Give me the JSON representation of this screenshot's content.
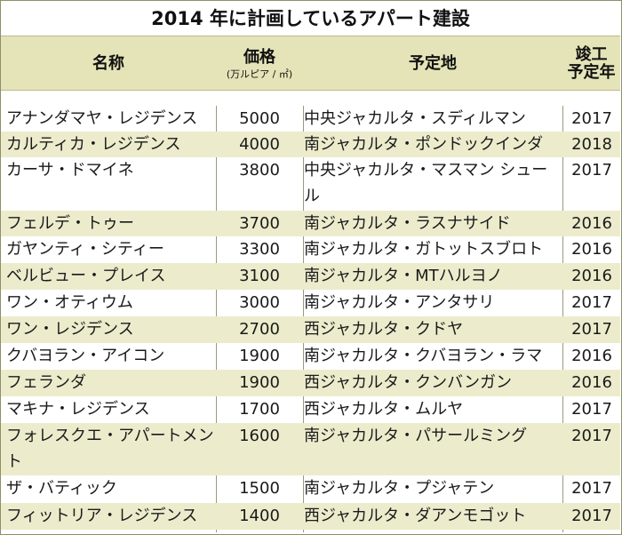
{
  "title": "2014 年に計画しているアパート建設",
  "header": {
    "name": "名称",
    "price": "価格",
    "price_unit": "(万ルピア / ㎡)",
    "location": "予定地",
    "completion_line1": "竣工",
    "completion_line2": "予定年"
  },
  "rows": [
    {
      "name": "アナンダマヤ・レジデンス",
      "price": "5000",
      "location": "中央ジャカルタ・スディルマン",
      "year": "2017"
    },
    {
      "name": "カルティカ・レジデンス",
      "price": "4000",
      "location": "南ジャカルタ・ポンドックインダ",
      "year": "2018"
    },
    {
      "name": "カーサ・ドマイネ",
      "price": "3800",
      "location": "中央ジャカルタ・マスマン シュール",
      "year": "2017"
    },
    {
      "name": "フェルデ・トゥー",
      "price": "3700",
      "location": "南ジャカルタ・ラスナサイド",
      "year": "2016"
    },
    {
      "name": "ガヤンティ・シティー",
      "price": "3300",
      "location": "南ジャカルタ・ガトットスブロト",
      "year": "2016"
    },
    {
      "name": "ベルビュー・プレイス",
      "price": "3100",
      "location": "南ジャカルタ・MTハルヨノ",
      "year": "2016"
    },
    {
      "name": "ワン・オティウム",
      "price": "3000",
      "location": "南ジャカルタ・アンタサリ",
      "year": "2017"
    },
    {
      "name": "ワン・レジデンス",
      "price": "2700",
      "location": "西ジャカルタ・クドヤ",
      "year": "2017"
    },
    {
      "name": "クバヨラン・アイコン",
      "price": "1900",
      "location": "南ジャカルタ・クバヨラン・ラマ",
      "year": "2016"
    },
    {
      "name": "フェランダ",
      "price": "1900",
      "location": "西ジャカルタ・クンバンガン",
      "year": "2016"
    },
    {
      "name": "マキナ・レジデンス",
      "price": "1700",
      "location": "西ジャカルタ・ムルヤ",
      "year": "2017"
    },
    {
      "name": "フォレスクエ・アパートメント",
      "price": "1600",
      "location": "南ジャカルタ・パサールミング",
      "year": "2017"
    },
    {
      "name": "ザ・バティック",
      "price": "1500",
      "location": "南ジャカルタ・プジャテン",
      "year": "2017"
    },
    {
      "name": "フィットリア・レジデンス",
      "price": "1400",
      "location": "西ジャカルタ・ダアンモゴット",
      "year": "2017"
    }
  ]
}
